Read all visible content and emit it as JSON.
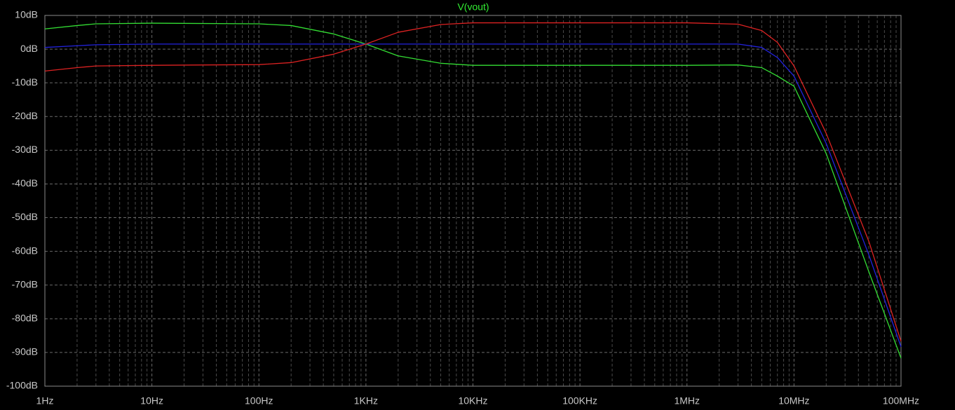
{
  "chart_data": {
    "type": "line",
    "title": "V(vout)",
    "title_color": "#33ee33",
    "x": [
      1,
      2,
      3,
      10,
      100,
      200,
      500,
      1000,
      2000,
      5000,
      10000,
      100000,
      1000000,
      3000000,
      5000000,
      7000000,
      10000000,
      20000000,
      50000000,
      100000000
    ],
    "series": [
      {
        "color": "#33dd33",
        "values": [
          6,
          7,
          7.5,
          7.7,
          7.5,
          7,
          4.5,
          1.5,
          -2,
          -4.2,
          -4.8,
          -4.8,
          -4.8,
          -4.7,
          -5.5,
          -8,
          -11,
          -31,
          -66,
          -91.7
        ]
      },
      {
        "color": "#2222dd",
        "values": [
          0.5,
          1,
          1.3,
          1.5,
          1.5,
          1.5,
          1.5,
          1.5,
          1.5,
          1.5,
          1.5,
          1.5,
          1.5,
          1.5,
          0.5,
          -2.5,
          -8,
          -28,
          -61,
          -88.3
        ]
      },
      {
        "color": "#dd2222",
        "values": [
          -6.5,
          -5.5,
          -5,
          -4.8,
          -4.6,
          -4,
          -1.5,
          1.5,
          5,
          7.3,
          7.8,
          7.8,
          7.8,
          7.4,
          5.5,
          2,
          -5,
          -25,
          -57,
          -86.7
        ]
      }
    ],
    "xscale": "log",
    "xlim": [
      1,
      100000000
    ],
    "ylim": [
      -100,
      10
    ],
    "xticks": [
      {
        "value": 1,
        "label": "1Hz"
      },
      {
        "value": 10,
        "label": "10Hz"
      },
      {
        "value": 100,
        "label": "100Hz"
      },
      {
        "value": 1000,
        "label": "1KHz"
      },
      {
        "value": 10000,
        "label": "10KHz"
      },
      {
        "value": 100000,
        "label": "100KHz"
      },
      {
        "value": 1000000,
        "label": "1MHz"
      },
      {
        "value": 10000000,
        "label": "10MHz"
      },
      {
        "value": 100000000,
        "label": "100MHz"
      }
    ],
    "yticks": [
      {
        "value": 10,
        "label": "10dB"
      },
      {
        "value": 0,
        "label": "0dB"
      },
      {
        "value": -10,
        "label": "-10dB"
      },
      {
        "value": -20,
        "label": "-20dB"
      },
      {
        "value": -30,
        "label": "-30dB"
      },
      {
        "value": -40,
        "label": "-40dB"
      },
      {
        "value": -50,
        "label": "-50dB"
      },
      {
        "value": -60,
        "label": "-60dB"
      },
      {
        "value": -70,
        "label": "-70dB"
      },
      {
        "value": -80,
        "label": "-80dB"
      },
      {
        "value": -90,
        "label": "-90dB"
      },
      {
        "value": -100,
        "label": "-100dB"
      }
    ],
    "grid": true,
    "minor_grid": true
  }
}
